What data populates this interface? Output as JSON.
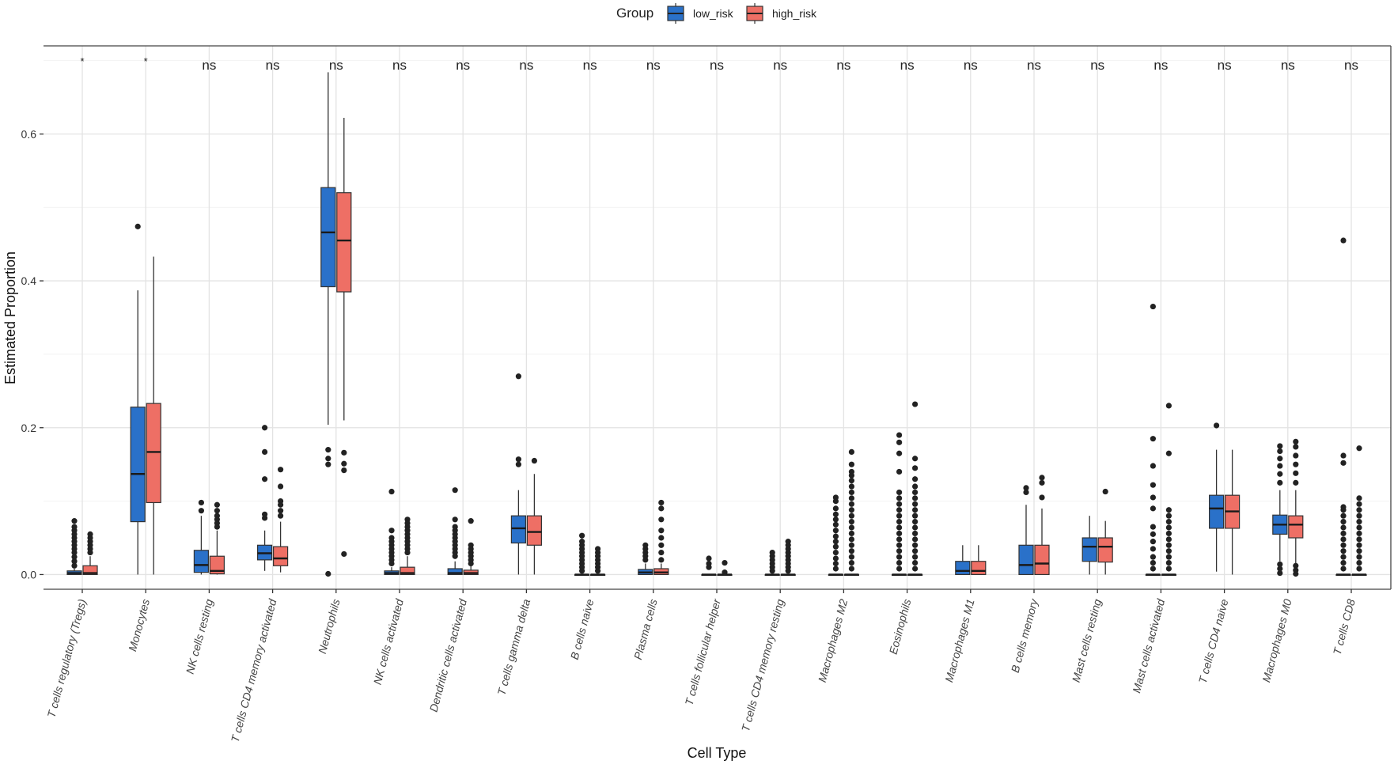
{
  "chart_data": {
    "type": "boxplot",
    "xlabel": "Cell Type",
    "ylabel": "Estimated Proportion",
    "ylim": [
      -0.02,
      0.72
    ],
    "yticks": [
      "0.0",
      "0.2",
      "0.4",
      "0.6"
    ],
    "legend": {
      "title": "Group",
      "position": "top",
      "entries": [
        "low_risk",
        "high_risk"
      ]
    },
    "colors": {
      "low_risk": "#2A71C9",
      "high_risk": "#EE6F65",
      "grid_major": "#E3E3E3",
      "grid_minor": "#F2F2F2",
      "axis": "#333333",
      "text": "#222222"
    },
    "categories": [
      "T cells regulatory (Tregs)",
      "Monocytes",
      "NK cells resting",
      "T cells CD4 memory activated",
      "Neutrophils",
      "NK cells activated",
      "Dendritic cells activated",
      "T cells gamma delta",
      "B cells naive",
      "Plasma cells",
      "T cells follicular helper",
      "T cells CD4 memory resting",
      "Macrophages M2",
      "Eosinophils",
      "Macrophages M1",
      "B cells memory",
      "Mast cells resting",
      "Mast cells activated",
      "T cells CD4 naive",
      "Macrophages M0",
      "T cells CD8"
    ],
    "significance": [
      "*",
      "*",
      "ns",
      "ns",
      "ns",
      "ns",
      "ns",
      "ns",
      "ns",
      "ns",
      "ns",
      "ns",
      "ns",
      "ns",
      "ns",
      "ns",
      "ns",
      "ns",
      "ns",
      "ns",
      "ns"
    ],
    "series": [
      {
        "name": "low_risk",
        "boxes": [
          {
            "min": 0,
            "q1": 0,
            "median": 0.002,
            "q3": 0.005,
            "max": 0.008,
            "outliers": [
              0.012,
              0.018,
              0.024,
              0.03,
              0.035,
              0.04,
              0.045,
              0.05,
              0.055,
              0.06,
              0.065,
              0.073
            ]
          },
          {
            "min": 0,
            "q1": 0.072,
            "median": 0.137,
            "q3": 0.228,
            "max": 0.387,
            "outliers": [
              0.474
            ]
          },
          {
            "min": 0,
            "q1": 0.003,
            "median": 0.013,
            "q3": 0.033,
            "max": 0.08,
            "outliers": [
              0.087,
              0.098
            ]
          },
          {
            "min": 0.005,
            "q1": 0.02,
            "median": 0.029,
            "q3": 0.04,
            "max": 0.06,
            "outliers": [
              0.077,
              0.082,
              0.13,
              0.167,
              0.2
            ]
          },
          {
            "min": 0.204,
            "q1": 0.392,
            "median": 0.466,
            "q3": 0.527,
            "max": 0.684,
            "outliers": [
              0.17,
              0.158,
              0.15,
              0.001
            ]
          },
          {
            "min": 0,
            "q1": 0,
            "median": 0.002,
            "q3": 0.005,
            "max": 0.01,
            "outliers": [
              0.015,
              0.02,
              0.025,
              0.03,
              0.035,
              0.04,
              0.045,
              0.05,
              0.06,
              0.113
            ]
          },
          {
            "min": 0,
            "q1": 0,
            "median": 0.002,
            "q3": 0.008,
            "max": 0.018,
            "outliers": [
              0.025,
              0.03,
              0.035,
              0.04,
              0.045,
              0.05,
              0.055,
              0.06,
              0.065,
              0.075,
              0.115
            ]
          },
          {
            "min": 0,
            "q1": 0.043,
            "median": 0.063,
            "q3": 0.08,
            "max": 0.115,
            "outliers": [
              0.15,
              0.157,
              0.27
            ]
          },
          {
            "min": 0,
            "q1": 0,
            "median": 0,
            "q3": 0,
            "max": 0,
            "outliers": [
              0.005,
              0.01,
              0.015,
              0.02,
              0.025,
              0.03,
              0.035,
              0.04,
              0.045,
              0.053
            ]
          },
          {
            "min": 0,
            "q1": 0,
            "median": 0.003,
            "q3": 0.007,
            "max": 0.015,
            "outliers": [
              0.02,
              0.025,
              0.03,
              0.035,
              0.04
            ]
          },
          {
            "min": 0,
            "q1": 0,
            "median": 0,
            "q3": 0,
            "max": 0,
            "outliers": [
              0.01,
              0.015,
              0.022
            ]
          },
          {
            "min": 0,
            "q1": 0,
            "median": 0,
            "q3": 0,
            "max": 0,
            "outliers": [
              0.005,
              0.01,
              0.015,
              0.02,
              0.025,
              0.03
            ]
          },
          {
            "min": 0,
            "q1": 0,
            "median": 0,
            "q3": 0,
            "max": 0,
            "outliers": [
              0.008,
              0.015,
              0.022,
              0.03,
              0.038,
              0.045,
              0.052,
              0.06,
              0.068,
              0.075,
              0.082,
              0.09,
              0.1,
              0.105
            ]
          },
          {
            "min": 0,
            "q1": 0,
            "median": 0,
            "q3": 0,
            "max": 0,
            "outliers": [
              0.008,
              0.016,
              0.024,
              0.032,
              0.04,
              0.048,
              0.056,
              0.064,
              0.072,
              0.08,
              0.088,
              0.096,
              0.104,
              0.112,
              0.14,
              0.165,
              0.18,
              0.19
            ]
          },
          {
            "min": 0,
            "q1": 0,
            "median": 0.005,
            "q3": 0.018,
            "max": 0.04,
            "outliers": []
          },
          {
            "min": 0,
            "q1": 0,
            "median": 0.013,
            "q3": 0.04,
            "max": 0.095,
            "outliers": [
              0.112,
              0.118
            ]
          },
          {
            "min": 0,
            "q1": 0.018,
            "median": 0.038,
            "q3": 0.05,
            "max": 0.08,
            "outliers": []
          },
          {
            "min": 0,
            "q1": 0,
            "median": 0,
            "q3": 0,
            "max": 0,
            "outliers": [
              0.008,
              0.016,
              0.024,
              0.035,
              0.045,
              0.055,
              0.065,
              0.09,
              0.105,
              0.122,
              0.148,
              0.185,
              0.365
            ]
          },
          {
            "min": 0.004,
            "q1": 0.063,
            "median": 0.09,
            "q3": 0.108,
            "max": 0.17,
            "outliers": [
              0.203
            ]
          },
          {
            "min": 0.018,
            "q1": 0.055,
            "median": 0.068,
            "q3": 0.081,
            "max": 0.115,
            "outliers": [
              0.002,
              0.008,
              0.014,
              0.125,
              0.137,
              0.148,
              0.158,
              0.168,
              0.175
            ]
          },
          {
            "min": 0,
            "q1": 0,
            "median": 0,
            "q3": 0,
            "max": 0,
            "outliers": [
              0.008,
              0.016,
              0.024,
              0.032,
              0.04,
              0.048,
              0.056,
              0.064,
              0.072,
              0.08,
              0.088,
              0.092,
              0.152,
              0.162,
              0.455
            ]
          }
        ]
      },
      {
        "name": "high_risk",
        "boxes": [
          {
            "min": 0,
            "q1": 0,
            "median": 0.002,
            "q3": 0.012,
            "max": 0.025,
            "outliers": [
              0.03,
              0.035,
              0.04,
              0.045,
              0.05,
              0.055
            ]
          },
          {
            "min": 0,
            "q1": 0.098,
            "median": 0.167,
            "q3": 0.233,
            "max": 0.433,
            "outliers": []
          },
          {
            "min": 0,
            "q1": 0.001,
            "median": 0.005,
            "q3": 0.025,
            "max": 0.06,
            "outliers": [
              0.065,
              0.07,
              0.075,
              0.08,
              0.087,
              0.095
            ]
          },
          {
            "min": 0.003,
            "q1": 0.012,
            "median": 0.022,
            "q3": 0.038,
            "max": 0.072,
            "outliers": [
              0.08,
              0.087,
              0.095,
              0.1,
              0.12,
              0.143
            ]
          },
          {
            "min": 0.21,
            "q1": 0.385,
            "median": 0.455,
            "q3": 0.52,
            "max": 0.622,
            "outliers": [
              0.166,
              0.151,
              0.142,
              0.028
            ]
          },
          {
            "min": 0,
            "q1": 0,
            "median": 0.002,
            "q3": 0.01,
            "max": 0.025,
            "outliers": [
              0.03,
              0.035,
              0.04,
              0.045,
              0.05,
              0.055,
              0.06,
              0.065,
              0.07,
              0.075
            ]
          },
          {
            "min": 0,
            "q1": 0,
            "median": 0.002,
            "q3": 0.006,
            "max": 0.012,
            "outliers": [
              0.015,
              0.02,
              0.025,
              0.03,
              0.035,
              0.04,
              0.073
            ]
          },
          {
            "min": 0,
            "q1": 0.04,
            "median": 0.058,
            "q3": 0.08,
            "max": 0.137,
            "outliers": [
              0.155
            ]
          },
          {
            "min": 0,
            "q1": 0,
            "median": 0,
            "q3": 0,
            "max": 0,
            "outliers": [
              0.005,
              0.01,
              0.015,
              0.02,
              0.025,
              0.03,
              0.035
            ]
          },
          {
            "min": 0,
            "q1": 0,
            "median": 0.003,
            "q3": 0.008,
            "max": 0.015,
            "outliers": [
              0.02,
              0.03,
              0.04,
              0.05,
              0.06,
              0.075,
              0.09,
              0.098
            ]
          },
          {
            "min": 0,
            "q1": 0,
            "median": 0,
            "q3": 0,
            "max": 0,
            "outliers": [
              0.003,
              0.016
            ]
          },
          {
            "min": 0,
            "q1": 0,
            "median": 0,
            "q3": 0,
            "max": 0,
            "outliers": [
              0.005,
              0.01,
              0.015,
              0.02,
              0.025,
              0.03,
              0.035,
              0.04,
              0.045
            ]
          },
          {
            "min": 0,
            "q1": 0,
            "median": 0,
            "q3": 0,
            "max": 0,
            "outliers": [
              0.008,
              0.016,
              0.024,
              0.032,
              0.04,
              0.048,
              0.056,
              0.064,
              0.072,
              0.08,
              0.088,
              0.096,
              0.104,
              0.112,
              0.12,
              0.128,
              0.135,
              0.14,
              0.15,
              0.167
            ]
          },
          {
            "min": 0,
            "q1": 0,
            "median": 0,
            "q3": 0,
            "max": 0,
            "outliers": [
              0.008,
              0.016,
              0.024,
              0.032,
              0.04,
              0.048,
              0.056,
              0.064,
              0.072,
              0.08,
              0.088,
              0.096,
              0.104,
              0.112,
              0.12,
              0.13,
              0.145,
              0.158,
              0.232
            ]
          },
          {
            "min": 0,
            "q1": 0,
            "median": 0.005,
            "q3": 0.018,
            "max": 0.04,
            "outliers": []
          },
          {
            "min": 0,
            "q1": 0,
            "median": 0.015,
            "q3": 0.04,
            "max": 0.09,
            "outliers": [
              0.105,
              0.125,
              0.132
            ]
          },
          {
            "min": 0,
            "q1": 0.017,
            "median": 0.038,
            "q3": 0.05,
            "max": 0.073,
            "outliers": [
              0.113
            ]
          },
          {
            "min": 0,
            "q1": 0,
            "median": 0,
            "q3": 0,
            "max": 0,
            "outliers": [
              0.008,
              0.016,
              0.024,
              0.032,
              0.04,
              0.048,
              0.056,
              0.064,
              0.072,
              0.08,
              0.088,
              0.165,
              0.23
            ]
          },
          {
            "min": 0,
            "q1": 0.063,
            "median": 0.086,
            "q3": 0.108,
            "max": 0.17,
            "outliers": []
          },
          {
            "min": 0.005,
            "q1": 0.05,
            "median": 0.068,
            "q3": 0.08,
            "max": 0.115,
            "outliers": [
              0.001,
              0.006,
              0.012,
              0.125,
              0.138,
              0.15,
              0.162,
              0.174,
              0.181
            ]
          },
          {
            "min": 0,
            "q1": 0,
            "median": 0,
            "q3": 0,
            "max": 0,
            "outliers": [
              0.008,
              0.016,
              0.024,
              0.032,
              0.04,
              0.048,
              0.056,
              0.064,
              0.072,
              0.08,
              0.088,
              0.096,
              0.104,
              0.172
            ]
          }
        ]
      }
    ]
  }
}
